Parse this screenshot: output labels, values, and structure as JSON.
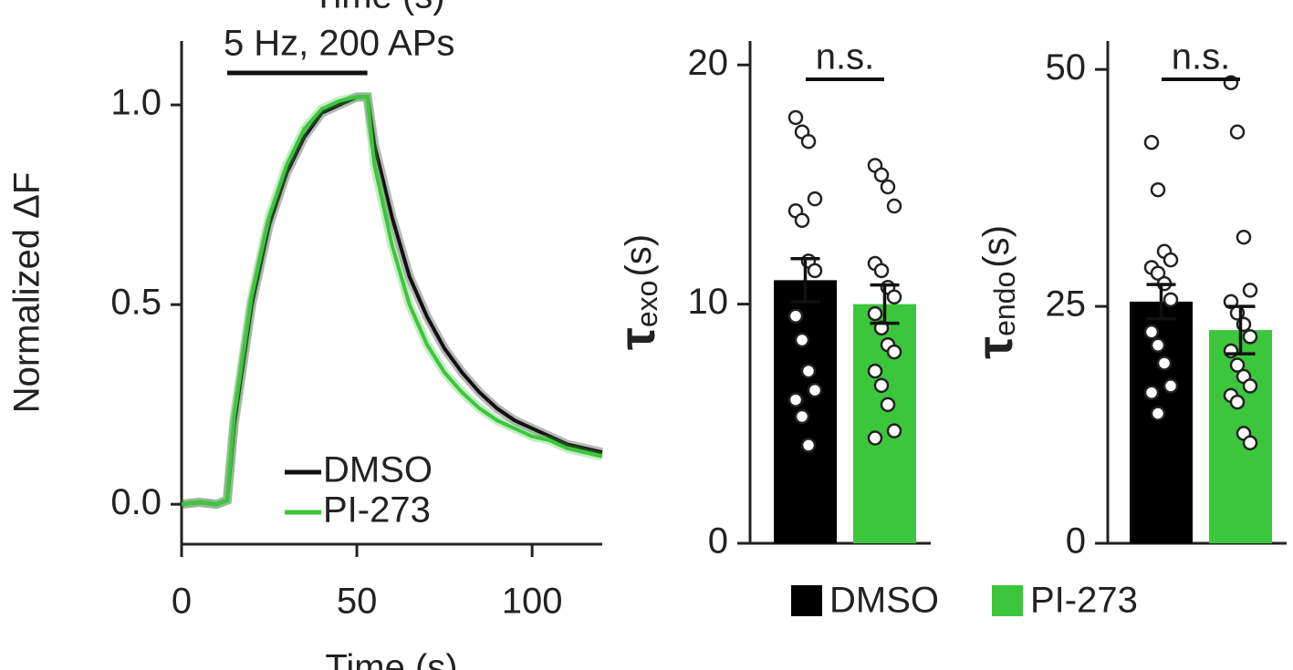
{
  "chart_data": [
    {
      "type": "line",
      "top_label": "Time (s)",
      "xlabel": "Time (s)",
      "ylabel": "Normalized ΔF",
      "stimulus": {
        "label": "5 Hz, 200 APs",
        "start": 13,
        "end": 53
      },
      "x": [
        0,
        5,
        10,
        13,
        15,
        20,
        25,
        30,
        35,
        40,
        45,
        50,
        53,
        55,
        60,
        65,
        70,
        75,
        80,
        85,
        90,
        95,
        100,
        105,
        110,
        115,
        120
      ],
      "series": [
        {
          "name": "DMSO",
          "color": "#111111",
          "values": [
            0,
            0.005,
            0,
            0.01,
            0.2,
            0.5,
            0.7,
            0.83,
            0.92,
            0.98,
            1.0,
            1.02,
            1.02,
            0.9,
            0.72,
            0.57,
            0.47,
            0.39,
            0.33,
            0.28,
            0.24,
            0.21,
            0.19,
            0.17,
            0.15,
            0.14,
            0.13
          ]
        },
        {
          "name": "PI-273",
          "color": "#3cc63c",
          "values": [
            0,
            0.005,
            0,
            0.01,
            0.22,
            0.52,
            0.72,
            0.85,
            0.94,
            0.99,
            1.01,
            1.02,
            1.02,
            0.85,
            0.65,
            0.5,
            0.4,
            0.33,
            0.28,
            0.24,
            0.21,
            0.19,
            0.17,
            0.16,
            0.14,
            0.13,
            0.12
          ]
        }
      ],
      "xlim": [
        0,
        120
      ],
      "xticks": [
        0,
        50,
        100
      ],
      "ylim": [
        -0.1,
        1.16
      ],
      "yticks": [
        {
          "value": 0,
          "label": "0.0"
        },
        {
          "value": 0.5,
          "label": "0.5"
        },
        {
          "value": 1,
          "label": "1.0"
        }
      ]
    },
    {
      "type": "bar",
      "ylabel": "τ",
      "ylabel_sub": "exo",
      "ylabel_unit": "(s)",
      "annotation": "n.s.",
      "values": [
        11.0,
        10.0
      ],
      "errors": [
        0.9,
        0.8
      ],
      "points": [
        [
          17.8,
          17.2,
          16.8,
          14.4,
          13.9,
          13.5,
          11.8,
          11.4,
          9.5,
          8.5,
          7.2,
          6.4,
          6.0,
          5.3,
          4.1
        ],
        [
          15.8,
          15.4,
          14.9,
          14.1,
          11.7,
          11.4,
          10.7,
          10.3,
          9.6,
          9.0,
          8.3,
          8.0,
          7.2,
          6.6,
          5.8,
          4.7,
          4.4
        ]
      ],
      "ylim": [
        0,
        21
      ],
      "yticks": [
        0,
        10,
        20
      ]
    },
    {
      "type": "bar",
      "ylabel": "τ",
      "ylabel_sub": "endo",
      "ylabel_unit": "(s)",
      "annotation": "n.s.",
      "values": [
        25.5,
        22.5
      ],
      "errors": [
        1.8,
        2.5
      ],
      "points": [
        [
          42.3,
          37.3,
          30.8,
          29.9,
          29.1,
          28.5,
          27.4,
          25.7,
          22.3,
          20.9,
          19.0,
          16.6,
          15.9,
          13.7
        ],
        [
          48.6,
          43.4,
          32.3,
          26.7,
          25.5,
          24.3,
          23.1,
          21.8,
          20.3,
          18.8,
          17.6,
          16.6,
          15.6,
          14.9,
          11.6,
          10.6
        ]
      ],
      "ylim": [
        0,
        53
      ],
      "yticks": [
        0,
        25,
        50
      ]
    }
  ],
  "legend": {
    "entries": [
      {
        "name": "DMSO",
        "color": "#000000"
      },
      {
        "name": "PI-273",
        "color": "#3cc63c"
      }
    ]
  }
}
